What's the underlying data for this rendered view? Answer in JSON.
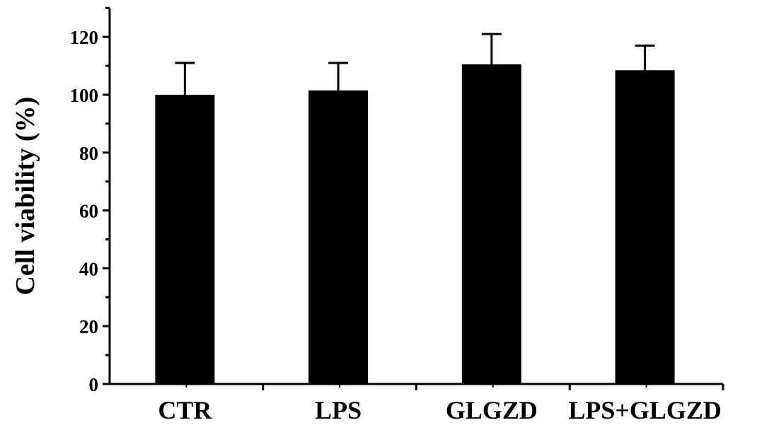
{
  "chart_data": {
    "type": "bar",
    "title": "",
    "xlabel": "",
    "ylabel": "Cell viability (%)",
    "categories": [
      "CTR",
      "LPS",
      "GLGZD",
      "LPS+GLGZD"
    ],
    "series": [
      {
        "values": [
          100,
          101.5,
          110.5,
          108.5
        ],
        "error": [
          11,
          9.5,
          10.5,
          8.5
        ]
      }
    ],
    "ylim": [
      0,
      130
    ],
    "yticks": [
      0,
      20,
      40,
      60,
      80,
      100,
      120
    ],
    "ytick_labels": [
      "0",
      "20",
      "40",
      "60",
      "80",
      "100",
      "120"
    ],
    "grid": false,
    "legend": "none",
    "colors": {
      "bar": "#000000",
      "axis": "#000000",
      "background": "#ffffff"
    }
  }
}
